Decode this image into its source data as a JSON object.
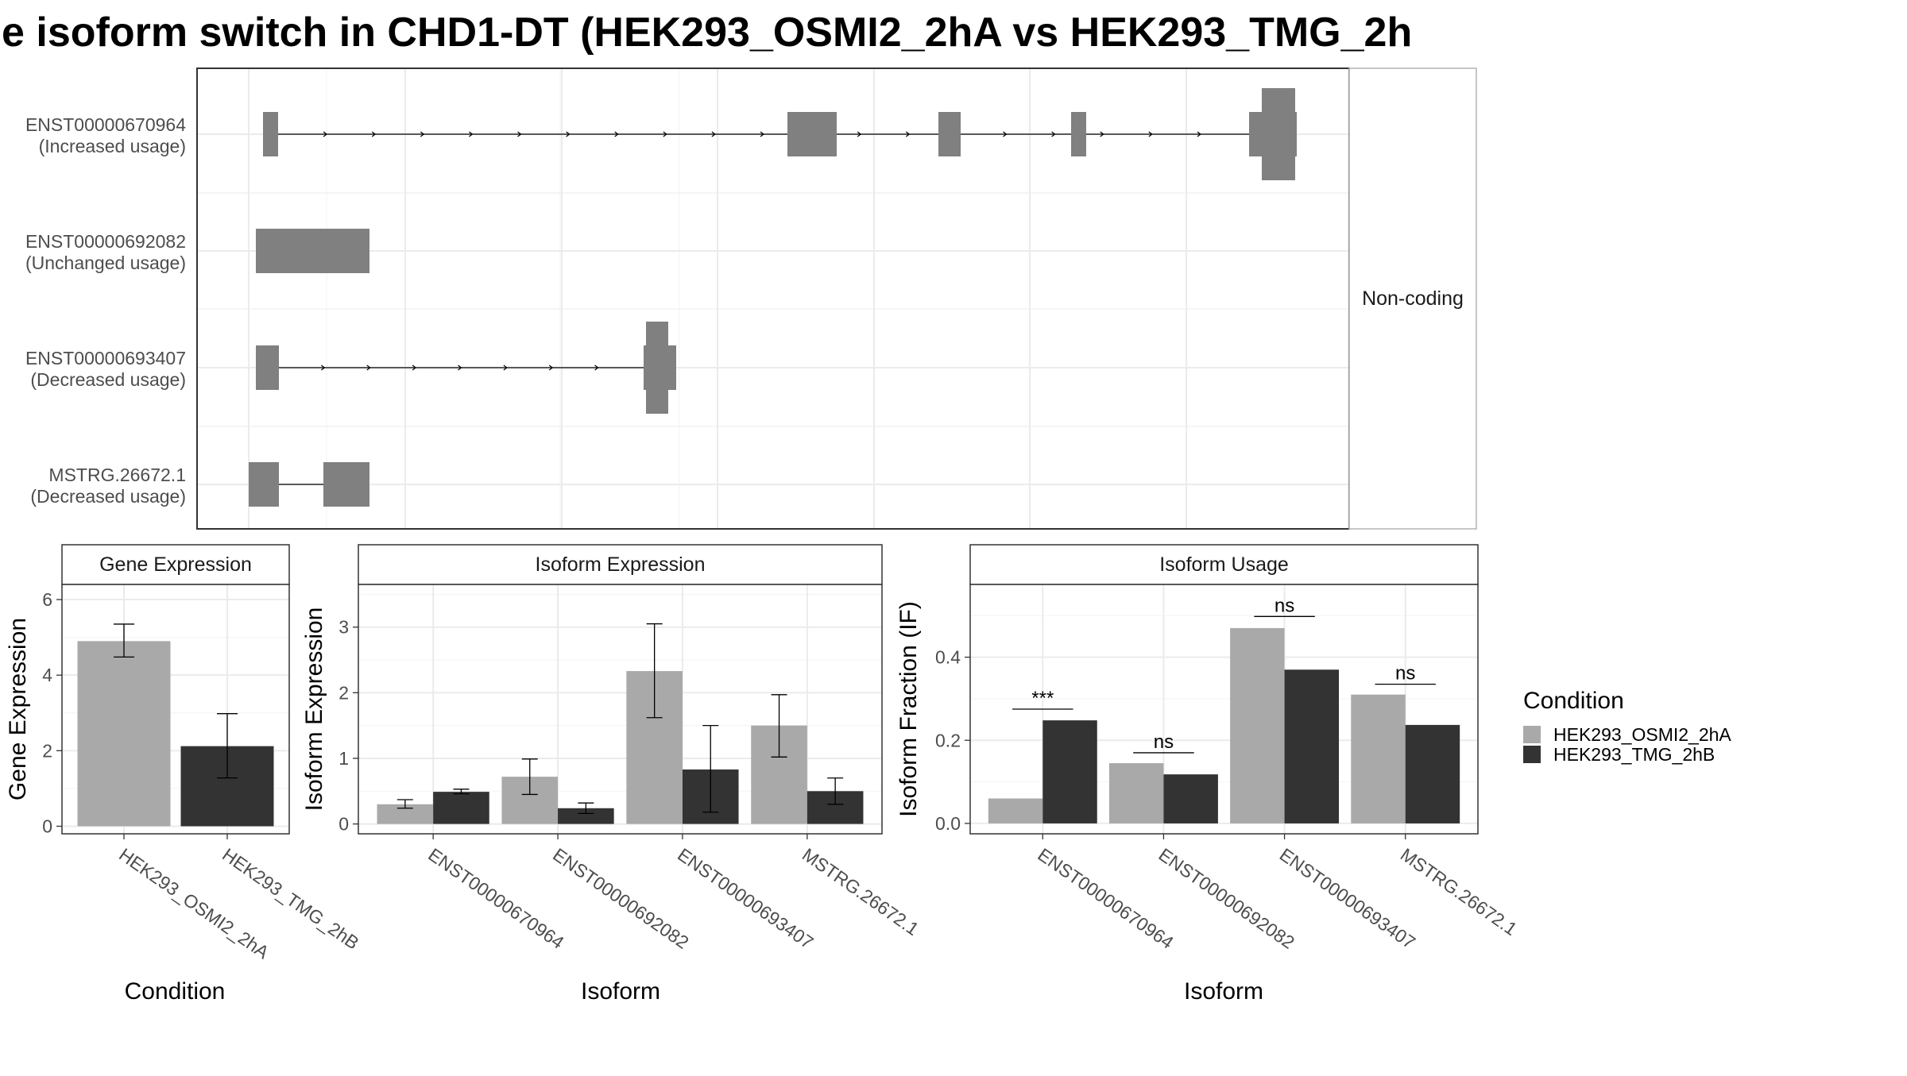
{
  "title": "e isoform switch in CHD1-DT (HEK293_OSMI2_2hA vs HEK293_TMG_2h",
  "colors": {
    "osmi": "#a9a9a9",
    "tmg": "#333333",
    "exon": "#808080",
    "grid": "#ebebeb",
    "border": "#333333",
    "strip_fill": "#ffffff"
  },
  "legend": {
    "title": "Condition",
    "items": [
      {
        "label": "HEK293_OSMI2_2hA",
        "color": "#a9a9a9"
      },
      {
        "label": "HEK293_TMG_2hB",
        "color": "#333333"
      }
    ]
  },
  "structure": {
    "strip_label": "Non-coding",
    "transcripts": [
      {
        "id": "ENST00000670964",
        "usage": "(Increased usage)"
      },
      {
        "id": "ENST00000692082",
        "usage": "(Unchanged usage)"
      },
      {
        "id": "ENST00000693407",
        "usage": "(Decreased usage)"
      },
      {
        "id": "MSTRG.26672.1",
        "usage": "(Decreased usage)"
      }
    ]
  },
  "chart_data": [
    {
      "type": "bar",
      "strip": "Gene Expression",
      "xlabel": "Condition",
      "ylabel": "Gene Expression",
      "categories": [
        "HEK293_OSMI2_2hA",
        "HEK293_TMG_2hB"
      ],
      "values": [
        4.9,
        2.12
      ],
      "err_low": [
        4.48,
        1.28
      ],
      "err_high": [
        5.35,
        2.98
      ],
      "colors": [
        "#a9a9a9",
        "#333333"
      ],
      "ylim": [
        -0.2,
        6.4
      ],
      "yticks": [
        0,
        2,
        4,
        6
      ]
    },
    {
      "type": "bar",
      "strip": "Isoform Expression",
      "xlabel": "Isoform",
      "ylabel": "Isoform Expression",
      "categories": [
        "ENST00000670964",
        "ENST00000692082",
        "ENST00000693407",
        "MSTRG.26672.1"
      ],
      "series": [
        {
          "values": [
            0.3,
            0.72,
            2.33,
            1.5
          ],
          "err_low": [
            0.24,
            0.45,
            1.62,
            1.02
          ],
          "err_high": [
            0.37,
            0.99,
            3.05,
            1.97
          ]
        },
        {
          "values": [
            0.49,
            0.24,
            0.83,
            0.5
          ],
          "err_low": [
            0.46,
            0.16,
            0.18,
            0.3
          ],
          "err_high": [
            0.53,
            0.32,
            1.5,
            0.7
          ]
        }
      ],
      "ylim": [
        -0.15,
        3.65
      ],
      "yticks": [
        0,
        1,
        2,
        3
      ]
    },
    {
      "type": "bar",
      "strip": "Isoform Usage",
      "xlabel": "Isoform",
      "ylabel": "Isoform Fraction (IF)",
      "categories": [
        "ENST00000670964",
        "ENST00000692082",
        "ENST00000693407",
        "MSTRG.26672.1"
      ],
      "series": [
        {
          "values": [
            0.06,
            0.145,
            0.47,
            0.31
          ]
        },
        {
          "values": [
            0.248,
            0.118,
            0.37,
            0.237
          ]
        }
      ],
      "significance": [
        "***",
        "ns",
        "ns",
        "ns"
      ],
      "sig_y": [
        0.275,
        0.17,
        0.498,
        0.335
      ],
      "ylim": [
        -0.025,
        0.575
      ],
      "yticks": [
        0.0,
        0.2,
        0.4
      ],
      "ytick_labels": [
        "0.0",
        "0.2",
        "0.4"
      ]
    }
  ]
}
